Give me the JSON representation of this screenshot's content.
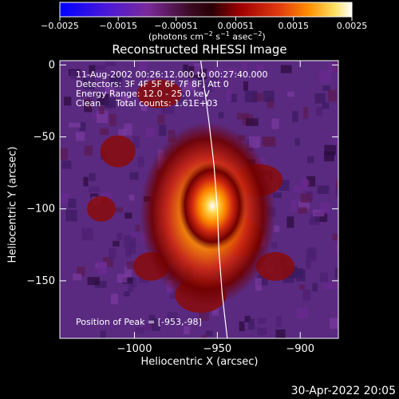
{
  "colorbar": {
    "ticks": [
      "-0.0025",
      "-0.0015",
      "-0.00051",
      "0.00051",
      "0.0015",
      "0.0025"
    ],
    "units": "(photons cm-2 s-1 asec-2)",
    "colors": [
      "#0000ff",
      "#5a14c8",
      "#7a2a8c",
      "#3a0a18",
      "#9a0000",
      "#e03010",
      "#ff7a00",
      "#ffd040",
      "#ffffff"
    ]
  },
  "header": {
    "time_range": "11-Aug-2002 00:26:12.000 to 00:27:40.000",
    "detectors": "Detectors: 3F 4F 5F 6F 7F 8F, Att 0",
    "energy": "Energy Range: 12.0 - 25.0 keV",
    "algorithm": "Clean",
    "total_counts": "Total counts: 1.61E+03"
  },
  "annotation": {
    "peak": "Position of Peak = [-953,-98]"
  },
  "footer": {
    "date": "30-Apr-2022 20:05"
  },
  "chart_data": {
    "type": "heatmap",
    "title": "Reconstructed RHESSI Image",
    "xlabel": "Heliocentric X (arcsec)",
    "ylabel": "Heliocentric Y (arcsec)",
    "xlim": [
      -1045,
      -877
    ],
    "ylim": [
      -190,
      3
    ],
    "x_ticks": [
      -1000,
      -950,
      -900
    ],
    "x_tick_labels": [
      "−1000",
      "−950",
      "−900"
    ],
    "y_ticks": [
      0,
      -50,
      -100,
      -150
    ],
    "y_tick_labels": [
      "0",
      "−50",
      "−100",
      "−150"
    ],
    "peak": [
      -953,
      -98
    ],
    "limb": [
      [
        -960,
        3
      ],
      [
        -955,
        -40
      ],
      [
        -952,
        -70
      ],
      [
        -950,
        -100
      ],
      [
        -949,
        -130
      ],
      [
        -947,
        -160
      ],
      [
        -944,
        -190
      ]
    ],
    "colorbar_range": [
      -0.0025,
      0.0025
    ],
    "grid": false
  }
}
